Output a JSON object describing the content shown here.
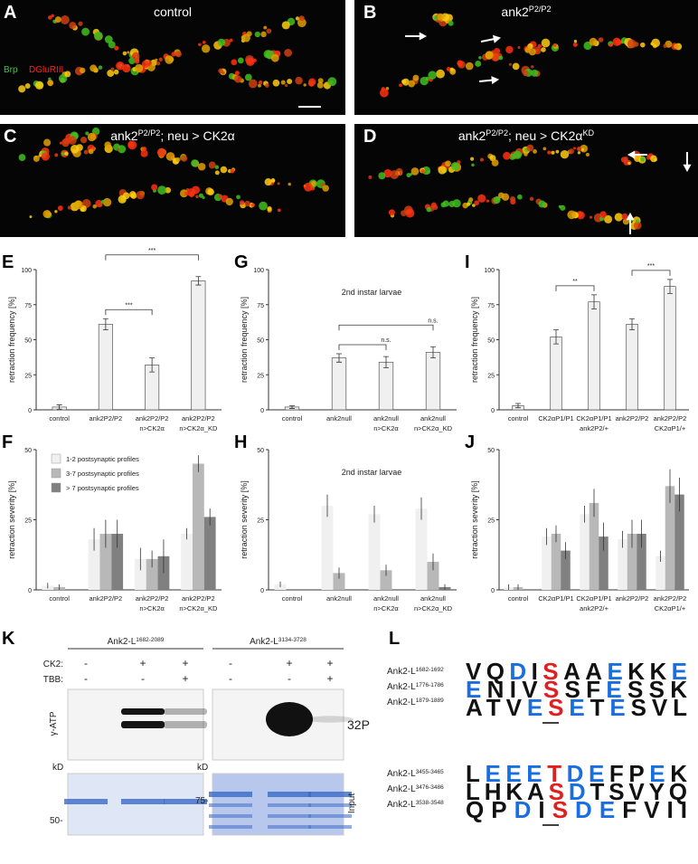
{
  "panels": [
    {
      "panel": "A",
      "title_parts": [
        {
          "text": "control"
        }
      ],
      "legend": [
        {
          "text": "Brp",
          "color": "#33cc33"
        },
        {
          "text": "DGluRIII",
          "color": "#ff2020"
        }
      ]
    },
    {
      "panel": "B",
      "title_parts": [
        {
          "text": "ank2"
        },
        {
          "text": "P2/P2",
          "sup": true
        }
      ]
    },
    {
      "panel": "C",
      "title_parts": [
        {
          "text": "ank2"
        },
        {
          "text": "P2/P2",
          "sup": true
        },
        {
          "text": "; neu > CK2α"
        }
      ]
    },
    {
      "panel": "D",
      "title_parts": [
        {
          "text": "ank2"
        },
        {
          "text": "P2/P2",
          "sup": true
        },
        {
          "text": "; neu > CK2α"
        },
        {
          "text": "KD",
          "sup": true
        }
      ]
    }
  ],
  "chart_data": [
    {
      "panel": "E",
      "type": "bar",
      "ylabel": "retraction frequency [%]",
      "color": "#f0f0f0",
      "categories": [
        "control",
        "ank2P2/P2",
        "ank2P2/P2\nn>CK2α",
        "ank2P2/P2\nn>CK2α_KD"
      ],
      "values": [
        2,
        61,
        32,
        92
      ],
      "errors": [
        1.5,
        4,
        5,
        3
      ],
      "ylim": [
        0,
        100
      ],
      "yticks": [
        0,
        25,
        50,
        75,
        100
      ],
      "brackets": [
        {
          "from": 1,
          "to": 2,
          "label": "***"
        },
        {
          "from": 1,
          "to": 3,
          "label": "***"
        }
      ]
    },
    {
      "panel": "F",
      "type": "grouped_bar",
      "ylabel": "retraction severity [%]",
      "legend": "top-left",
      "categories": [
        "control",
        "ank2P2/P2",
        "ank2P2/P2\nn>CK2α",
        "ank2P2/P2\nn>CK2α_KD"
      ],
      "series": [
        {
          "name": "1-2 postsynaptic profiles",
          "color": "#f0f0f0",
          "values": [
            1.5,
            18,
            11,
            20
          ],
          "errors": [
            1,
            4,
            4,
            2
          ]
        },
        {
          "name": "3-7 postsynaptic profiles",
          "color": "#b8b8b8",
          "values": [
            1,
            20,
            11,
            45
          ],
          "errors": [
            1,
            5,
            3,
            3
          ]
        },
        {
          "name": "> 7 postsynaptic profiles",
          "color": "#808080",
          "values": [
            0,
            20,
            12,
            26
          ],
          "errors": [
            0,
            5,
            6,
            3
          ]
        }
      ],
      "ylim": [
        0,
        50
      ],
      "yticks": [
        0,
        25,
        50
      ]
    },
    {
      "panel": "G",
      "type": "bar",
      "ylabel": "retraction frequency [%]",
      "annotation": "2nd instar larvae",
      "color": "#f0f0f0",
      "categories": [
        "control",
        "ank2null",
        "ank2null\nn>CK2α",
        "ank2null\nn>CK2α_KD"
      ],
      "values": [
        2,
        37,
        34,
        41
      ],
      "errors": [
        1,
        3,
        4,
        4
      ],
      "ylim": [
        0,
        100
      ],
      "yticks": [
        0,
        25,
        50,
        75,
        100
      ],
      "brackets": [
        {
          "from": 1,
          "to": 2,
          "label": "n.s."
        },
        {
          "from": 1,
          "to": 3,
          "label": "n.s."
        }
      ]
    },
    {
      "panel": "H",
      "type": "grouped_bar",
      "ylabel": "retraction severity [%]",
      "annotation": "2nd instar larvae",
      "categories": [
        "control",
        "ank2null",
        "ank2null\nn>CK2α",
        "ank2null\nn>CK2α_KD"
      ],
      "series": [
        {
          "color": "#f0f0f0",
          "values": [
            2,
            30,
            27,
            29
          ],
          "errors": [
            1,
            4,
            3,
            4
          ]
        },
        {
          "color": "#b8b8b8",
          "values": [
            0,
            6,
            7,
            10
          ],
          "errors": [
            0,
            2,
            2,
            3
          ]
        },
        {
          "color": "#808080",
          "values": [
            0,
            0,
            0,
            1
          ],
          "errors": [
            0,
            0,
            0,
            1
          ]
        }
      ],
      "ylim": [
        0,
        50
      ],
      "yticks": [
        0,
        25,
        50
      ]
    },
    {
      "panel": "I",
      "type": "bar",
      "ylabel": "retraction frequency [%]",
      "color": "#f0f0f0",
      "categories": [
        "control",
        "CK2αP1/P1",
        "CK2αP1/P1\nank2P2/+",
        "ank2P2/P2",
        "ank2P2/P2\nCK2αP1/+"
      ],
      "values": [
        3,
        52,
        77,
        61,
        88
      ],
      "errors": [
        1.5,
        5,
        5,
        4,
        5
      ],
      "ylim": [
        0,
        100
      ],
      "yticks": [
        0,
        25,
        50,
        75,
        100
      ],
      "brackets": [
        {
          "from": 1,
          "to": 2,
          "label": "**"
        },
        {
          "from": 3,
          "to": 4,
          "label": "***"
        }
      ]
    },
    {
      "panel": "J",
      "type": "grouped_bar",
      "ylabel": "retraction severity [%]",
      "categories": [
        "control",
        "CK2αP1/P1",
        "CK2αP1/P1\nank2P2/+",
        "ank2P2/P2",
        "ank2P2/P2\nCK2αP1/+"
      ],
      "series": [
        {
          "color": "#f0f0f0",
          "values": [
            1,
            19,
            27,
            18,
            12
          ],
          "errors": [
            1,
            3,
            3,
            3,
            2
          ]
        },
        {
          "color": "#b8b8b8",
          "values": [
            1,
            20,
            31,
            20,
            37
          ],
          "errors": [
            1,
            3,
            5,
            5,
            6
          ]
        },
        {
          "color": "#808080",
          "values": [
            0,
            14,
            19,
            20,
            34
          ],
          "errors": [
            0,
            3,
            5,
            5,
            6
          ]
        }
      ],
      "ylim": [
        0,
        50
      ],
      "yticks": [
        0,
        25,
        50
      ]
    }
  ],
  "blot": {
    "panel": "K",
    "constructs": [
      [
        {
          "text": "Ank2-L"
        },
        {
          "text": "1682-2089",
          "sup": true
        }
      ],
      [
        {
          "text": "Ank2-L"
        },
        {
          "text": "3134-3728",
          "sup": true
        }
      ]
    ],
    "rows": [
      {
        "label": "CK2:",
        "signs": [
          "-",
          "+",
          "+"
        ]
      },
      {
        "label": "TBB:",
        "signs": [
          "-",
          "-",
          "+"
        ]
      }
    ],
    "top_label": "γ-ATP",
    "isotope": "32P",
    "kd": "kD",
    "markers": [
      "50-",
      "75-"
    ],
    "input": "Input"
  },
  "logo": {
    "panel": "L",
    "groups": [
      {
        "labels": [
          [
            {
              "text": "Ank2-L"
            },
            {
              "text": "1682-1692",
              "sup": true
            }
          ],
          [
            {
              "text": "Ank2-L"
            },
            {
              "text": "1776-1786",
              "sup": true
            }
          ],
          [
            {
              "text": "Ank2-L"
            },
            {
              "text": "1879-1889",
              "sup": true
            }
          ]
        ],
        "rows": [
          "VQDISAAEKKE",
          "ENIVSSFESSK",
          "ATVESETESVL"
        ]
      },
      {
        "labels": [
          [
            {
              "text": "Ank2-L"
            },
            {
              "text": "3455-3465",
              "sup": true
            }
          ],
          [
            {
              "text": "Ank2-L"
            },
            {
              "text": "3476-3486",
              "sup": true
            }
          ],
          [
            {
              "text": "Ank2-L"
            },
            {
              "text": "3538-3548",
              "sup": true
            }
          ]
        ],
        "rows": [
          "LEEETDEFPEK",
          "LHKASDTSVYQ",
          "QPDISDEFVII"
        ]
      }
    ]
  }
}
